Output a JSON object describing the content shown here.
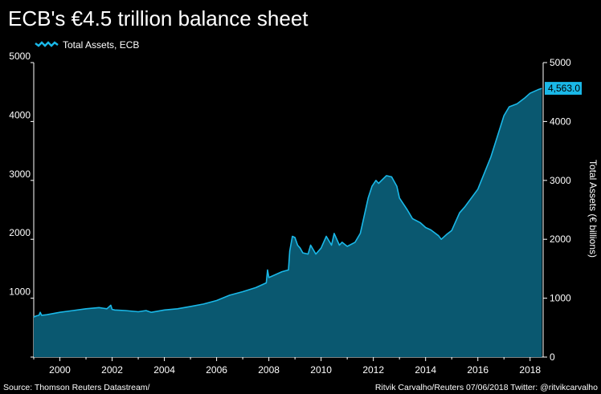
{
  "chart_data": {
    "type": "area",
    "title": "ECB's €4.5 trillion balance sheet",
    "ylabel": "Total Assets (€ billions)",
    "xlabel": "",
    "xlim": [
      1999.0,
      2018.5
    ],
    "ylim": [
      0,
      5000
    ],
    "x_ticks": [
      2000,
      2002,
      2004,
      2006,
      2008,
      2010,
      2012,
      2014,
      2016,
      2018
    ],
    "y_ticks": [
      0,
      1000,
      2000,
      3000,
      4000,
      5000
    ],
    "y_tick_labels_left": [
      "",
      "1000",
      "2000",
      "3000",
      "4000",
      "5000"
    ],
    "y_tick_labels_right": [
      "0",
      "1000",
      "2000",
      "3000",
      "4000",
      "5000"
    ],
    "legend": {
      "label": "Total Assets, ECB",
      "position": "top-left"
    },
    "last_value_label": "4,563.0",
    "colors": {
      "fill": "#0a5870",
      "line": "#1ab8e8",
      "background": "#000000",
      "label_bg": "#1ab8e8"
    },
    "series": [
      {
        "name": "Total Assets, ECB",
        "x": [
          1999.0,
          1999.1,
          1999.2,
          1999.25,
          1999.3,
          1999.5,
          2000.0,
          2000.5,
          2001.0,
          2001.5,
          2001.8,
          2001.95,
          2002.0,
          2002.1,
          2002.5,
          2003.0,
          2003.3,
          2003.5,
          2004.0,
          2004.5,
          2005.0,
          2005.5,
          2006.0,
          2006.5,
          2007.0,
          2007.5,
          2007.9,
          2007.95,
          2008.0,
          2008.5,
          2008.75,
          2008.8,
          2008.9,
          2009.0,
          2009.1,
          2009.2,
          2009.3,
          2009.5,
          2009.6,
          2009.8,
          2010.0,
          2010.2,
          2010.4,
          2010.5,
          2010.7,
          2010.8,
          2011.0,
          2011.3,
          2011.5,
          2011.6,
          2011.8,
          2011.95,
          2012.1,
          2012.2,
          2012.5,
          2012.7,
          2012.9,
          2013.0,
          2013.3,
          2013.5,
          2013.8,
          2014.0,
          2014.2,
          2014.5,
          2014.6,
          2014.8,
          2015.0,
          2015.3,
          2015.5,
          2016.0,
          2016.5,
          2017.0,
          2017.2,
          2017.5,
          2017.8,
          2018.0,
          2018.3,
          2018.45
        ],
        "values": [
          680,
          700,
          710,
          760,
          710,
          720,
          760,
          790,
          820,
          840,
          820,
          880,
          810,
          800,
          790,
          770,
          790,
          760,
          800,
          820,
          860,
          900,
          960,
          1050,
          1110,
          1180,
          1260,
          1480,
          1350,
          1450,
          1480,
          1800,
          2050,
          2030,
          1900,
          1850,
          1770,
          1750,
          1900,
          1750,
          1850,
          2050,
          1900,
          2100,
          1900,
          1950,
          1880,
          1950,
          2100,
          2300,
          2700,
          2900,
          3000,
          2950,
          3080,
          3060,
          2900,
          2700,
          2500,
          2350,
          2280,
          2200,
          2160,
          2060,
          2000,
          2080,
          2150,
          2450,
          2550,
          2850,
          3400,
          4100,
          4250,
          4300,
          4400,
          4480,
          4540,
          4563
        ]
      }
    ],
    "footer_left": "Source: Thomson Reuters Datastream/",
    "footer_right": "Ritvik Carvalho/Reuters 07/06/2018 Twitter: @ritvikcarvalho"
  }
}
